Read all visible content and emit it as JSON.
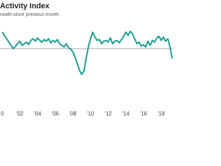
{
  "chart_data": {
    "type": "line",
    "title": "Activity Index",
    "subtitle": "rowth since previous month",
    "x": [
      2000,
      2000.25,
      2000.5,
      2000.75,
      2001,
      2001.25,
      2001.5,
      2001.75,
      2002,
      2002.25,
      2002.5,
      2002.75,
      2003,
      2003.25,
      2003.5,
      2003.75,
      2004,
      2004.25,
      2004.5,
      2004.75,
      2005,
      2005.25,
      2005.5,
      2005.75,
      2006,
      2006.25,
      2006.5,
      2006.75,
      2007,
      2007.25,
      2007.5,
      2007.75,
      2008,
      2008.25,
      2008.5,
      2008.75,
      2009,
      2009.25,
      2009.5,
      2009.75,
      2010,
      2010.25,
      2010.5,
      2010.75,
      2011,
      2011.25,
      2011.5,
      2011.75,
      2012,
      2012.25,
      2012.5,
      2012.75,
      2013,
      2013.25,
      2013.5,
      2013.75,
      2014,
      2014.25,
      2014.5,
      2014.75,
      2015,
      2015.25,
      2015.5,
      2015.75,
      2016,
      2016.25,
      2016.5,
      2016.75,
      2017,
      2017.25,
      2017.5,
      2017.75,
      2018,
      2018.25,
      2018.5,
      2018.75,
      2019,
      2019.25
    ],
    "series": [
      {
        "color": "#1a9a8e",
        "values": [
          2.0,
          1.6,
          1.2,
          0.8,
          0.4,
          0.0,
          0.3,
          0.6,
          0.9,
          0.4,
          0.6,
          0.8,
          0.5,
          1.0,
          1.2,
          0.9,
          1.3,
          1.0,
          0.8,
          1.1,
          0.9,
          1.2,
          0.7,
          1.0,
          0.8,
          1.1,
          0.6,
          0.4,
          0.2,
          0.6,
          0.1,
          0.0,
          -0.4,
          -1.0,
          -1.8,
          -2.6,
          -3.1,
          -2.7,
          -1.2,
          0.2,
          1.2,
          2.0,
          1.4,
          1.0,
          1.1,
          0.6,
          0.9,
          1.0,
          0.8,
          1.3,
          0.6,
          0.9,
          1.0,
          0.7,
          1.1,
          1.5,
          2.0,
          1.6,
          2.1,
          1.8,
          1.2,
          0.6,
          0.8,
          0.3,
          0.5,
          0.2,
          0.9,
          0.4,
          1.0,
          0.8,
          1.3,
          1.5,
          1.0,
          1.4,
          0.9,
          1.2,
          0.2,
          -1.2
        ]
      }
    ],
    "xlim": [
      1999.75,
      2019.3
    ],
    "xticks": [
      {
        "value": 2000,
        "label": "0"
      },
      {
        "value": 2002,
        "label": "'02"
      },
      {
        "value": 2004,
        "label": "'04"
      },
      {
        "value": 2006,
        "label": "'06"
      },
      {
        "value": 2008,
        "label": "'08"
      },
      {
        "value": 2010,
        "label": "'10"
      },
      {
        "value": 2012,
        "label": "'12"
      },
      {
        "value": 2014,
        "label": "'14"
      },
      {
        "value": 2016,
        "label": "'16"
      },
      {
        "value": 2018,
        "label": "'18"
      }
    ],
    "ylim": [
      -5.8,
      4.2
    ],
    "reference_line": 0
  }
}
